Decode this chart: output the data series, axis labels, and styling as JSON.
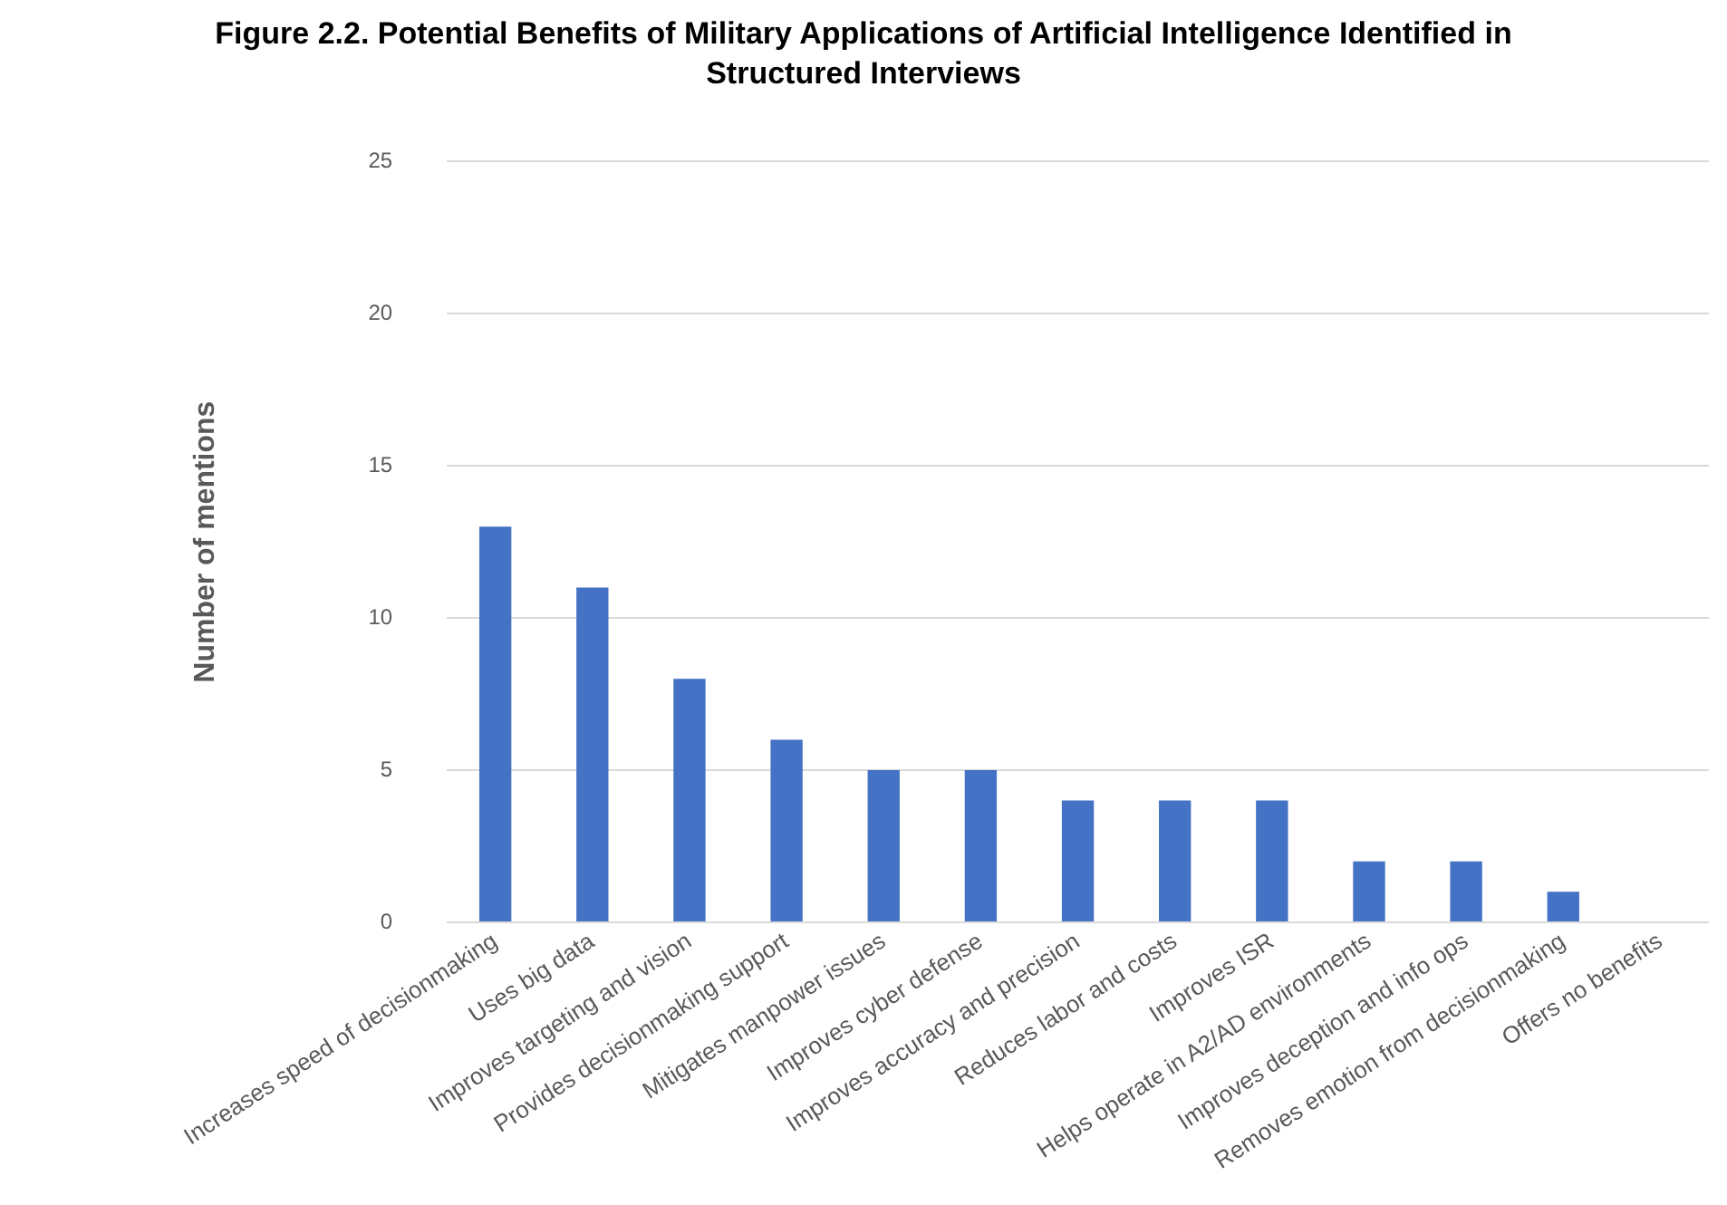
{
  "chart_data": {
    "type": "bar",
    "title": "Figure 2.2. Potential Benefits of Military Applications of Artificial Intelligence Identified in Structured Interviews",
    "ylabel": "Number of mentions",
    "categories": [
      "Increases speed of decisionmaking",
      "Uses big data",
      "Improves targeting and vision",
      "Provides decisionmaking support",
      "Mitigates manpower issues",
      "Improves cyber defense",
      "Improves accuracy and precision",
      "Reduces labor and costs",
      "Improves ISR",
      "Helps operate in A2/AD environments",
      "Improves deception and info ops",
      "Removes emotion from decisionmaking",
      "Offers no benefits"
    ],
    "values": [
      13,
      11,
      8,
      6,
      5,
      5,
      4,
      4,
      4,
      2,
      2,
      1,
      0
    ],
    "color": "#4472c4",
    "ylim": [
      0,
      25
    ],
    "yticks": [
      0,
      5,
      10,
      15,
      20,
      25
    ],
    "grid": "y"
  }
}
